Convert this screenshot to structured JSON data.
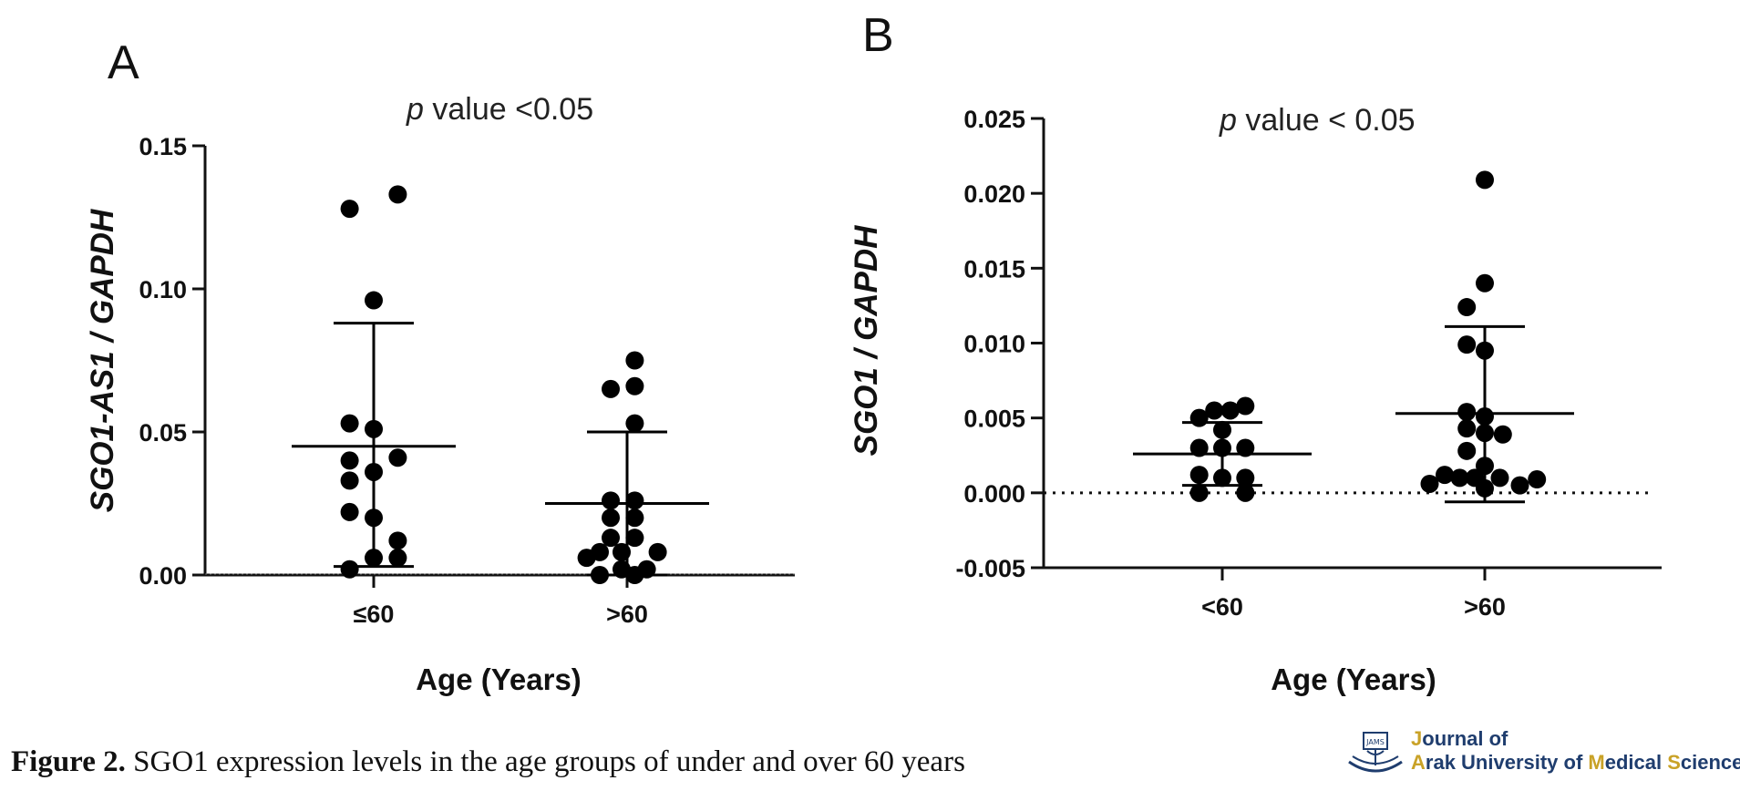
{
  "figure": {
    "caption_label": "Figure 2.",
    "caption_text": " SGO1 expression levels in the age groups of under and over 60 years",
    "journal_line1_initial": "J",
    "journal_line1_rest": "ournal of",
    "journal_line2_a": "A",
    "journal_line2_b": "rak University of ",
    "journal_line2_m": "M",
    "journal_line2_c": "edical ",
    "journal_line2_s": "S",
    "journal_line2_d": "ciences",
    "logo_badge_text": "JAMS",
    "accent_color": "#c9a227",
    "brand_color": "#1f3d6e"
  },
  "chart_data": [
    {
      "type": "scatter",
      "panel": "A",
      "title_p": "p",
      "title_rest": " value  <0.05",
      "xlabel": "Age (Years)",
      "ylabel": "SGO1-AS1 / GAPDH",
      "ylim": [
        0,
        0.15
      ],
      "yticks": [
        "0.00",
        "0.05",
        "0.10",
        "0.15"
      ],
      "yticks_values": [
        0,
        0.05,
        0.1,
        0.15
      ],
      "categories": [
        "≤60",
        ">60"
      ],
      "series": [
        {
          "category": "≤60",
          "points": [
            {
              "x": -0.22,
              "y": 0.128
            },
            {
              "x": 0.22,
              "y": 0.133
            },
            {
              "x": 0.0,
              "y": 0.096
            },
            {
              "x": -0.22,
              "y": 0.053
            },
            {
              "x": 0.0,
              "y": 0.051
            },
            {
              "x": -0.22,
              "y": 0.04
            },
            {
              "x": 0.22,
              "y": 0.041
            },
            {
              "x": -0.22,
              "y": 0.033
            },
            {
              "x": 0.0,
              "y": 0.036
            },
            {
              "x": -0.22,
              "y": 0.022
            },
            {
              "x": 0.0,
              "y": 0.02
            },
            {
              "x": 0.22,
              "y": 0.012
            },
            {
              "x": 0.0,
              "y": 0.006
            },
            {
              "x": -0.22,
              "y": 0.002
            },
            {
              "x": 0.22,
              "y": 0.006
            }
          ],
          "mean": 0.045,
          "sd_low": 0.003,
          "sd_high": 0.088
        },
        {
          "category": ">60",
          "points": [
            {
              "x": 0.07,
              "y": 0.075
            },
            {
              "x": -0.15,
              "y": 0.065
            },
            {
              "x": 0.07,
              "y": 0.066
            },
            {
              "x": 0.07,
              "y": 0.053
            },
            {
              "x": -0.15,
              "y": 0.026
            },
            {
              "x": 0.07,
              "y": 0.026
            },
            {
              "x": -0.15,
              "y": 0.02
            },
            {
              "x": 0.07,
              "y": 0.02
            },
            {
              "x": -0.15,
              "y": 0.013
            },
            {
              "x": 0.07,
              "y": 0.013
            },
            {
              "x": -0.37,
              "y": 0.006
            },
            {
              "x": -0.25,
              "y": 0.008
            },
            {
              "x": -0.05,
              "y": 0.008
            },
            {
              "x": 0.28,
              "y": 0.008
            },
            {
              "x": -0.25,
              "y": 0.0
            },
            {
              "x": -0.05,
              "y": 0.002
            },
            {
              "x": 0.07,
              "y": 0.0
            },
            {
              "x": 0.18,
              "y": 0.002
            }
          ],
          "mean": 0.025,
          "sd_low": 0.0,
          "sd_high": 0.05
        }
      ]
    },
    {
      "type": "scatter",
      "panel": "B",
      "title_p": "p",
      "title_rest": " value < 0.05",
      "xlabel": "Age (Years)",
      "ylabel": "SGO1 / GAPDH",
      "ylim": [
        -0.005,
        0.025
      ],
      "yticks": [
        "-0.005",
        "0.000",
        "0.005",
        "0.010",
        "0.015",
        "0.020",
        "0.025"
      ],
      "yticks_values": [
        -0.005,
        0,
        0.005,
        0.01,
        0.015,
        0.02,
        0.025
      ],
      "reference_line": 0,
      "categories": [
        "<60",
        ">60"
      ],
      "series": [
        {
          "category": "<60",
          "points": [
            {
              "x": -0.23,
              "y": 0.005
            },
            {
              "x": -0.08,
              "y": 0.0055
            },
            {
              "x": 0.08,
              "y": 0.0055
            },
            {
              "x": 0.23,
              "y": 0.0058
            },
            {
              "x": 0.0,
              "y": 0.0042
            },
            {
              "x": -0.23,
              "y": 0.003
            },
            {
              "x": 0.0,
              "y": 0.003
            },
            {
              "x": 0.23,
              "y": 0.003
            },
            {
              "x": -0.23,
              "y": 0.0012
            },
            {
              "x": 0.0,
              "y": 0.001
            },
            {
              "x": 0.23,
              "y": 0.001
            },
            {
              "x": -0.23,
              "y": 0.0
            },
            {
              "x": 0.23,
              "y": 0.0
            }
          ],
          "mean": 0.0026,
          "sd_low": 0.0005,
          "sd_high": 0.0047
        },
        {
          "category": ">60",
          "points": [
            {
              "x": 0.0,
              "y": 0.0209
            },
            {
              "x": 0.0,
              "y": 0.014
            },
            {
              "x": -0.18,
              "y": 0.0124
            },
            {
              "x": -0.18,
              "y": 0.0099
            },
            {
              "x": 0.0,
              "y": 0.0095
            },
            {
              "x": -0.18,
              "y": 0.0054
            },
            {
              "x": 0.0,
              "y": 0.0051
            },
            {
              "x": -0.18,
              "y": 0.0043
            },
            {
              "x": 0.0,
              "y": 0.004
            },
            {
              "x": 0.18,
              "y": 0.0039
            },
            {
              "x": -0.18,
              "y": 0.0028
            },
            {
              "x": 0.0,
              "y": 0.0018
            },
            {
              "x": -0.55,
              "y": 0.0006
            },
            {
              "x": -0.4,
              "y": 0.0012
            },
            {
              "x": -0.25,
              "y": 0.001
            },
            {
              "x": -0.1,
              "y": 0.001
            },
            {
              "x": 0.0,
              "y": 0.0003
            },
            {
              "x": 0.15,
              "y": 0.001
            },
            {
              "x": 0.35,
              "y": 0.0005
            },
            {
              "x": 0.52,
              "y": 0.0009
            }
          ],
          "mean": 0.0053,
          "sd_low": -0.0006,
          "sd_high": 0.0111
        }
      ]
    }
  ]
}
